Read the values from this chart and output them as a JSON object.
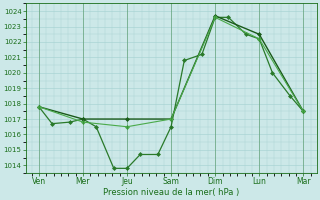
{
  "title": "",
  "xlabel": "Pression niveau de la mer( hPa )",
  "ylabel": "",
  "bg_color": "#cce8e8",
  "grid_color": "#aad4d4",
  "line_color_dark": "#1a6e1a",
  "x_labels": [
    "Ven",
    "Mer",
    "Jeu",
    "Sam",
    "Dim",
    "Lun",
    "Mar"
  ],
  "x_tick_positions": [
    0,
    1,
    2,
    3,
    4,
    5,
    6
  ],
  "ylim": [
    1013.5,
    1024.5
  ],
  "yticks": [
    1014,
    1015,
    1016,
    1017,
    1018,
    1019,
    1020,
    1021,
    1022,
    1023,
    1024
  ],
  "series": [
    {
      "name": "line1_zigzag",
      "x": [
        0,
        0.3,
        0.7,
        1.0,
        1.3,
        1.7,
        2.0,
        2.3,
        2.7,
        3.0,
        3.3,
        3.7,
        4.0,
        4.3,
        4.7,
        5.0,
        5.3,
        5.7,
        6.0
      ],
      "y": [
        1017.8,
        1016.7,
        1016.8,
        1017.0,
        1016.5,
        1013.8,
        1013.8,
        1014.7,
        1014.7,
        1016.5,
        1020.8,
        1021.2,
        1023.6,
        1023.6,
        1022.5,
        1022.2,
        1020.0,
        1018.5,
        1017.5
      ],
      "color": "#2a7a2a",
      "lw": 0.9,
      "marker": "D",
      "ms": 2.0
    },
    {
      "name": "line2_smooth",
      "x": [
        0,
        1,
        2,
        3,
        4,
        5,
        6
      ],
      "y": [
        1017.8,
        1017.0,
        1017.0,
        1017.0,
        1023.7,
        1022.5,
        1017.5
      ],
      "color": "#1a5a1a",
      "lw": 1.0,
      "marker": "D",
      "ms": 2.0
    },
    {
      "name": "line3_upper",
      "x": [
        0,
        1,
        2,
        3,
        4,
        5,
        6
      ],
      "y": [
        1017.8,
        1016.8,
        1016.5,
        1017.0,
        1023.6,
        1022.2,
        1017.5
      ],
      "color": "#4aaa4a",
      "lw": 0.8,
      "marker": "D",
      "ms": 2.0
    }
  ],
  "figsize": [
    3.2,
    2.0
  ],
  "dpi": 100
}
